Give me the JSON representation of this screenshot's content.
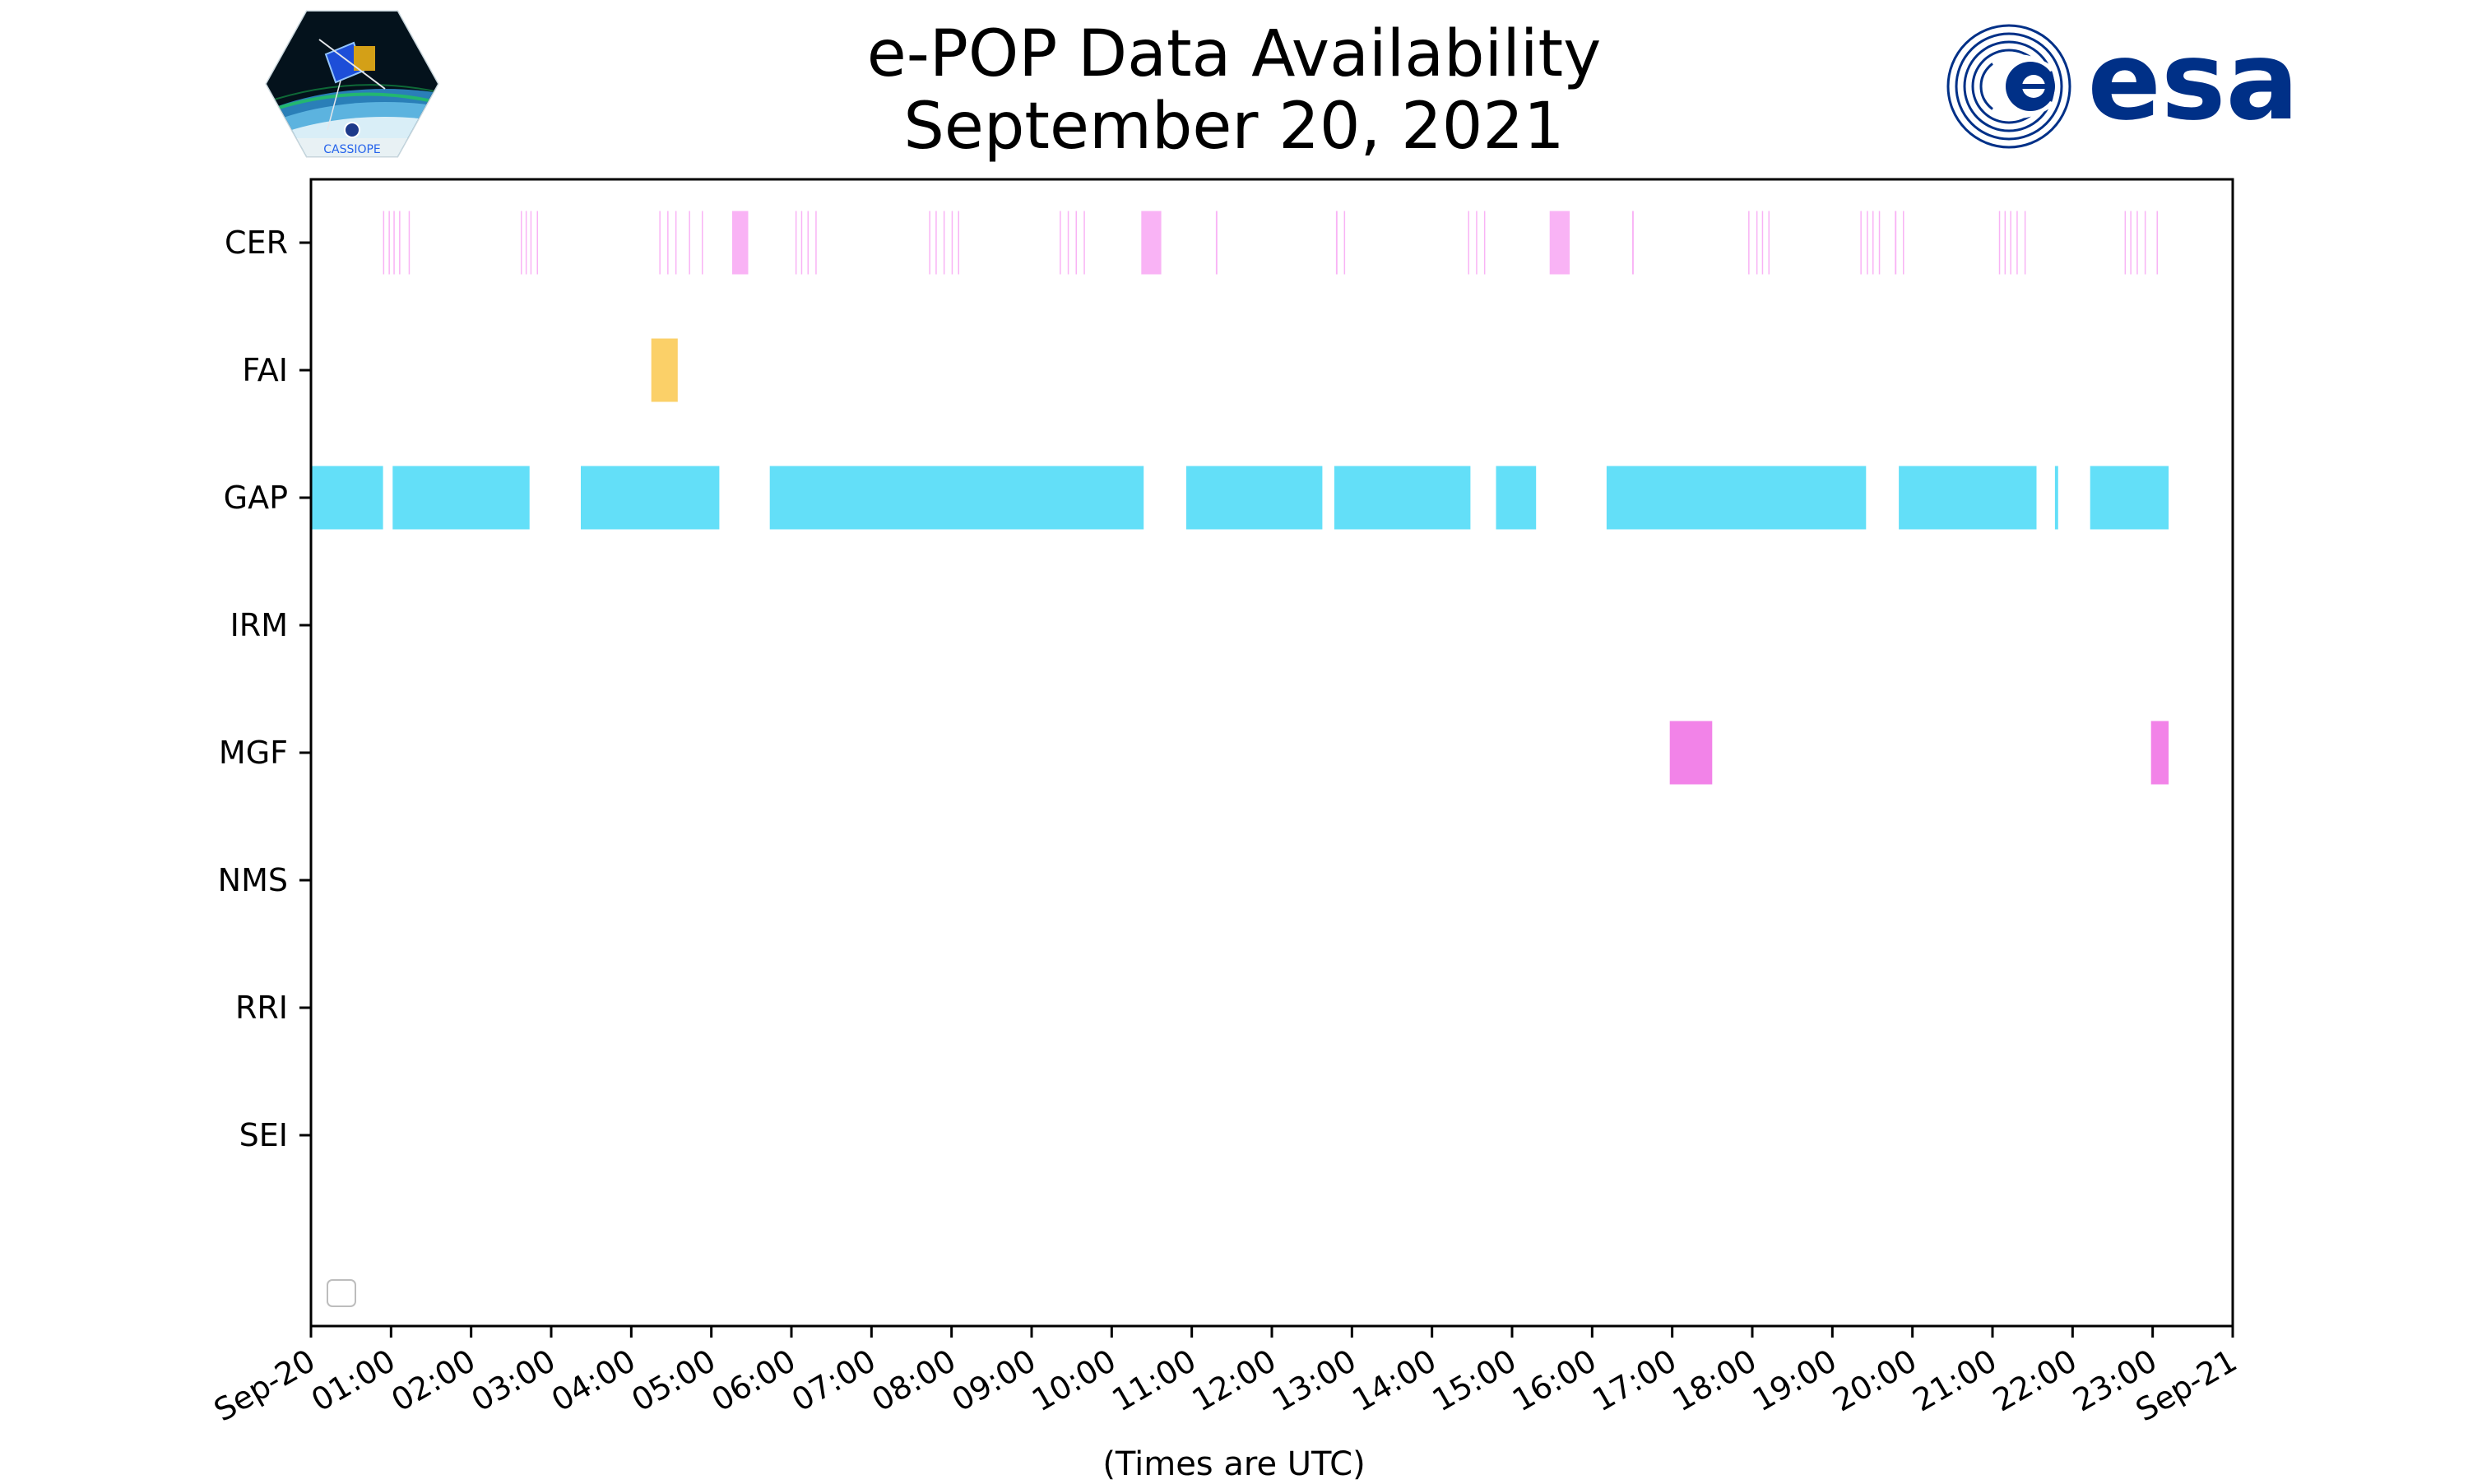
{
  "chart_data": {
    "type": "timeline",
    "title": "e-POP Data Availability",
    "subtitle": "September 20, 2021",
    "xlabel": "(Times are UTC)",
    "x_unit": "hours UTC since 2021-09-20 00:00",
    "xlim": [
      0,
      24
    ],
    "x_tick_labels": [
      "Sep-20",
      "01:00",
      "02:00",
      "03:00",
      "04:00",
      "05:00",
      "06:00",
      "07:00",
      "08:00",
      "09:00",
      "10:00",
      "11:00",
      "12:00",
      "13:00",
      "14:00",
      "15:00",
      "16:00",
      "17:00",
      "18:00",
      "19:00",
      "20:00",
      "21:00",
      "22:00",
      "23:00",
      "Sep-21"
    ],
    "categories": [
      "CER",
      "FAI",
      "GAP",
      "IRM",
      "MGF",
      "NMS",
      "RRI",
      "SEI"
    ],
    "colors": {
      "CER": "#f9b3f5",
      "FAI": "#fbd068",
      "GAP": "#63dff8",
      "MGF": "#f283e8"
    },
    "legend": "empty box, lower-left",
    "series": [
      {
        "name": "CER",
        "intervals": [
          [
            0.9,
            0.91
          ],
          [
            0.97,
            0.98
          ],
          [
            1.03,
            1.04
          ],
          [
            1.1,
            1.11
          ],
          [
            1.22,
            1.23
          ],
          [
            2.62,
            2.63
          ],
          [
            2.68,
            2.69
          ],
          [
            2.74,
            2.75
          ],
          [
            2.82,
            2.83
          ],
          [
            4.35,
            4.36
          ],
          [
            4.45,
            4.46
          ],
          [
            4.55,
            4.56
          ],
          [
            4.72,
            4.73
          ],
          [
            4.88,
            4.89
          ],
          [
            5.26,
            5.46
          ],
          [
            6.05,
            6.06
          ],
          [
            6.12,
            6.13
          ],
          [
            6.2,
            6.21
          ],
          [
            6.3,
            6.31
          ],
          [
            7.72,
            7.73
          ],
          [
            7.8,
            7.81
          ],
          [
            7.9,
            7.91
          ],
          [
            8.0,
            8.01
          ],
          [
            8.08,
            8.09
          ],
          [
            9.35,
            9.36
          ],
          [
            9.45,
            9.46
          ],
          [
            9.55,
            9.56
          ],
          [
            9.65,
            9.66
          ],
          [
            10.37,
            10.62
          ],
          [
            11.3,
            11.32
          ],
          [
            12.8,
            12.82
          ],
          [
            12.9,
            12.91
          ],
          [
            14.45,
            14.46
          ],
          [
            14.55,
            14.56
          ],
          [
            14.65,
            14.66
          ],
          [
            15.47,
            15.72
          ],
          [
            16.5,
            16.52
          ],
          [
            17.95,
            17.96
          ],
          [
            18.05,
            18.06
          ],
          [
            18.12,
            18.13
          ],
          [
            18.2,
            18.21
          ],
          [
            19.35,
            19.36
          ],
          [
            19.43,
            19.44
          ],
          [
            19.5,
            19.51
          ],
          [
            19.58,
            19.59
          ],
          [
            19.78,
            19.8
          ],
          [
            19.88,
            19.89
          ],
          [
            21.08,
            21.09
          ],
          [
            21.15,
            21.16
          ],
          [
            21.22,
            21.23
          ],
          [
            21.3,
            21.31
          ],
          [
            21.4,
            21.41
          ],
          [
            22.65,
            22.66
          ],
          [
            22.72,
            22.73
          ],
          [
            22.8,
            22.81
          ],
          [
            22.9,
            22.91
          ],
          [
            23.05,
            23.06
          ]
        ]
      },
      {
        "name": "FAI",
        "intervals": [
          [
            4.25,
            4.58
          ]
        ]
      },
      {
        "name": "GAP",
        "intervals": [
          [
            0.0,
            0.9
          ],
          [
            1.02,
            2.73
          ],
          [
            3.37,
            5.1
          ],
          [
            5.73,
            10.4
          ],
          [
            10.93,
            12.63
          ],
          [
            12.78,
            14.48
          ],
          [
            14.8,
            15.3
          ],
          [
            16.18,
            19.42
          ],
          [
            19.83,
            21.55
          ],
          [
            21.78,
            21.82
          ],
          [
            22.22,
            23.2
          ]
        ]
      },
      {
        "name": "IRM",
        "intervals": []
      },
      {
        "name": "MGF",
        "intervals": [
          [
            16.97,
            17.5
          ],
          [
            22.98,
            23.2
          ]
        ]
      },
      {
        "name": "NMS",
        "intervals": []
      },
      {
        "name": "RRI",
        "intervals": []
      },
      {
        "name": "SEI",
        "intervals": []
      }
    ]
  },
  "logos": {
    "left": "cassiope-logo",
    "left_text": "CASSIOPE",
    "right": "esa-logo",
    "right_text": "esa",
    "esa_color": "#003087"
  }
}
